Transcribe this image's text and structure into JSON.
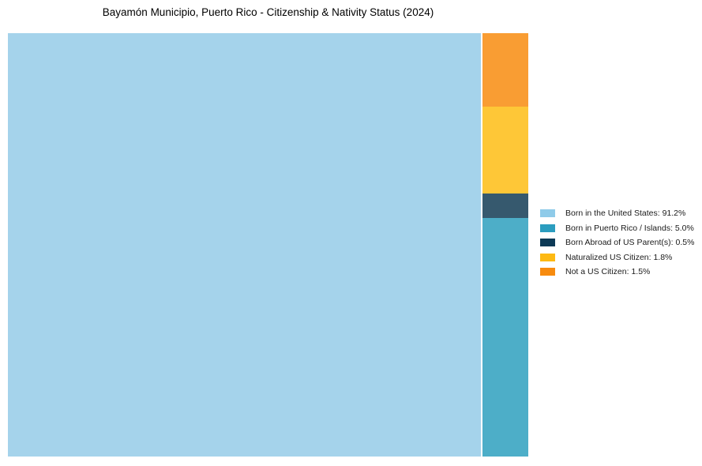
{
  "chart_data": {
    "type": "treemap",
    "title": "Bayamón Municipio, Puerto Rico - Citizenship & Nativity Status (2024)",
    "legend_position": "right",
    "total_pct": 100,
    "right_column_order_top_to_bottom": [
      "Not a US Citizen",
      "Naturalized US Citizen",
      "Born Abroad of US Parent(s)",
      "Born in Puerto Rico / Islands"
    ],
    "items": [
      {
        "label": "Born in the United States",
        "value_pct": 91.2,
        "legend_text": "Born in the United States: 91.2%",
        "color": "#8fcbe9",
        "block_color": "#a5d3eb"
      },
      {
        "label": "Born in Puerto Rico / Islands",
        "value_pct": 5.0,
        "legend_text": "Born in Puerto Rico / Islands: 5.0%",
        "color": "#2b9dbf",
        "block_color": "#4daec8"
      },
      {
        "label": "Born Abroad of US Parent(s)",
        "value_pct": 0.5,
        "legend_text": "Born Abroad of US Parent(s): 0.5%",
        "color": "#0d3a56",
        "block_color": "#36596e"
      },
      {
        "label": "Naturalized US Citizen",
        "value_pct": 1.8,
        "legend_text": "Naturalized US Citizen: 1.8%",
        "color": "#fdb913",
        "block_color": "#fec737"
      },
      {
        "label": "Not a US Citizen",
        "value_pct": 1.5,
        "legend_text": "Not a US Citizen: 1.5%",
        "color": "#f78b0f",
        "block_color": "#f99d33"
      }
    ],
    "background_color": "#ffffff"
  }
}
